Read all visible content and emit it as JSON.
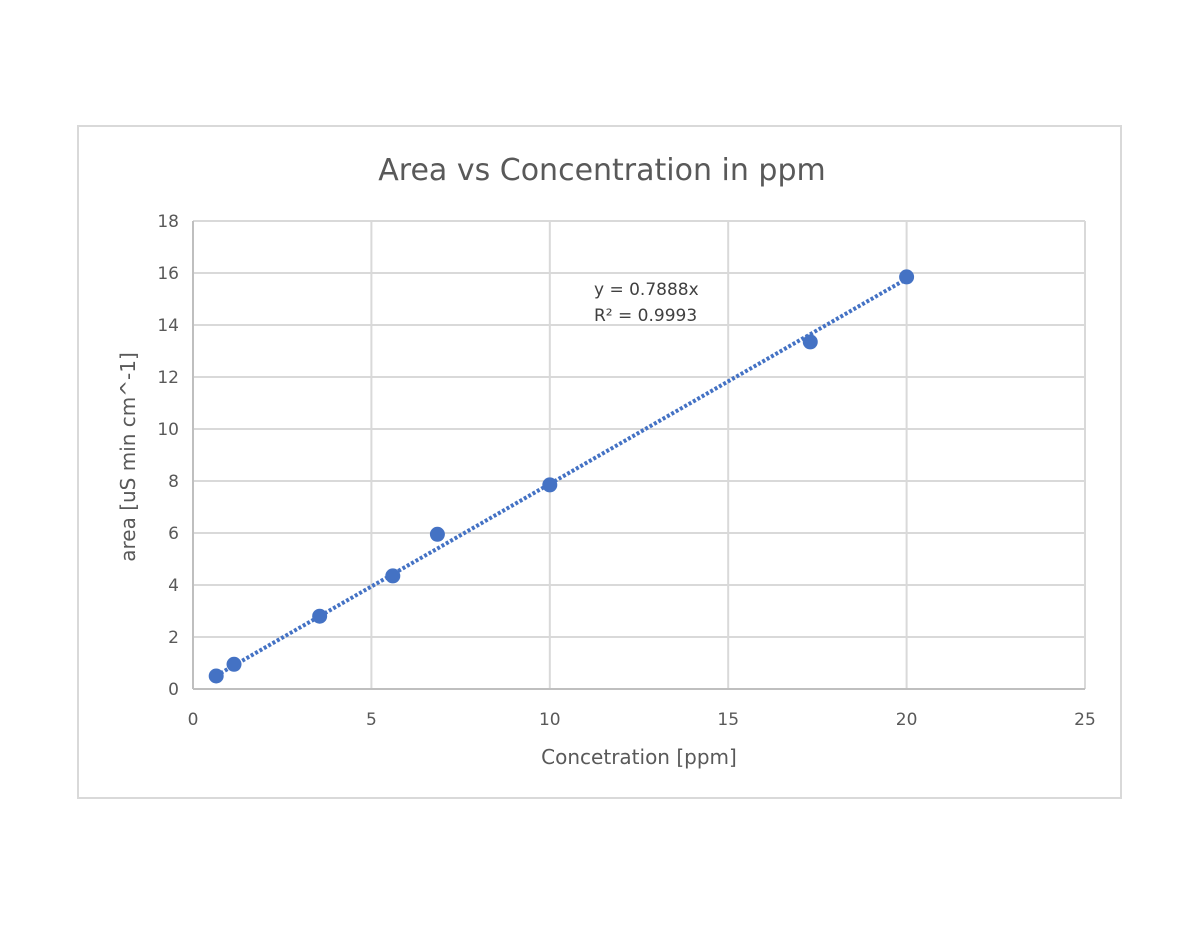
{
  "chart_data": {
    "type": "scatter",
    "title": "Area vs Concentration in ppm",
    "xlabel": "Concetration [ppm]",
    "ylabel": "area [uS min cm^-1]",
    "xlim": [
      0,
      25
    ],
    "ylim": [
      0,
      18
    ],
    "x_ticks": [
      0,
      5,
      10,
      15,
      20,
      25
    ],
    "y_ticks": [
      0,
      2,
      4,
      6,
      8,
      10,
      12,
      14,
      16,
      18
    ],
    "grid": true,
    "legend": "none",
    "series": [
      {
        "color": "#4472c4",
        "x": [
          0.65,
          1.15,
          3.55,
          5.6,
          6.85,
          10.0,
          17.3,
          20.0
        ],
        "y": [
          0.5,
          0.95,
          2.8,
          4.35,
          5.95,
          7.85,
          13.35,
          15.85
        ]
      }
    ],
    "trendline": {
      "type": "linear",
      "slope": 0.7888,
      "intercept": 0,
      "x_range": [
        0.65,
        20.0
      ],
      "equation_label": "y = 0.7888x",
      "r2_label": "R² = 0.9993"
    }
  }
}
